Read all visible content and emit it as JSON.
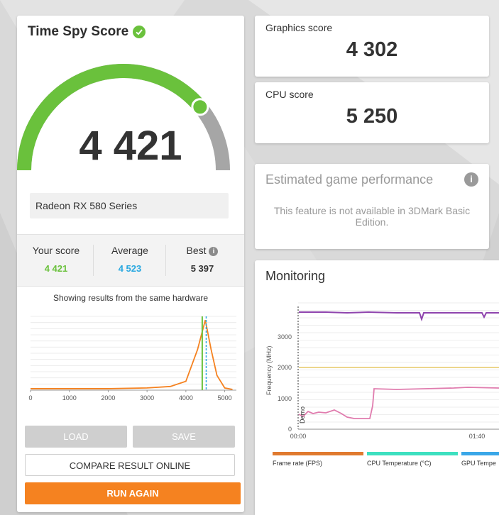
{
  "colors": {
    "accent_green": "#6ac13c",
    "average_blue": "#29a8e0",
    "orange": "#f58220",
    "purple": "#8e44ad",
    "pink": "#e07cae",
    "yellow": "#e6c867"
  },
  "left": {
    "title": "Time Spy Score",
    "score": "4 421",
    "gauge_fraction": 0.78,
    "gpu": "Radeon RX 580 Series",
    "stats": {
      "your_label": "Your score",
      "your_value": "4 421",
      "avg_label": "Average",
      "avg_value": "4 523",
      "best_label": "Best",
      "best_value": "5 397"
    },
    "hardware_note": "Showing results from the same hardware",
    "distribution": {
      "x_ticks": [
        "0",
        "1000",
        "2000",
        "3000",
        "4000",
        "5000"
      ],
      "xlim": [
        0,
        5300
      ],
      "ylim": [
        0,
        1
      ],
      "curve_x": [
        0,
        1000,
        2000,
        3000,
        3600,
        4000,
        4300,
        4500,
        4650,
        4800,
        5000,
        5200
      ],
      "curve_y": [
        0.02,
        0.02,
        0.02,
        0.03,
        0.05,
        0.12,
        0.55,
        0.95,
        0.55,
        0.2,
        0.03,
        0.01
      ],
      "your_score": 4421,
      "average": 4523
    },
    "buttons": {
      "load": "LOAD",
      "save": "SAVE",
      "compare": "COMPARE RESULT ONLINE",
      "run_again": "RUN AGAIN"
    }
  },
  "graphics": {
    "label": "Graphics score",
    "value": "4 302"
  },
  "cpu": {
    "label": "CPU score",
    "value": "5 250"
  },
  "estimated": {
    "title": "Estimated game performance",
    "message": "This feature is not available in 3DMark Basic Edition."
  },
  "monitoring": {
    "title": "Monitoring",
    "y_axis_label": "Frequency (MHz)",
    "y_ticks": [
      "0",
      "1000",
      "2000",
      "3000"
    ],
    "x_ticks": [
      "00:00",
      "01:40"
    ],
    "marker_label": "Demo",
    "legend": [
      "Frame rate (FPS)",
      "CPU Temperature (°C)",
      "GPU Tempe"
    ],
    "legend_colors": [
      "#e07a2f",
      "#3de0c0",
      "#3aa7e8"
    ]
  }
}
